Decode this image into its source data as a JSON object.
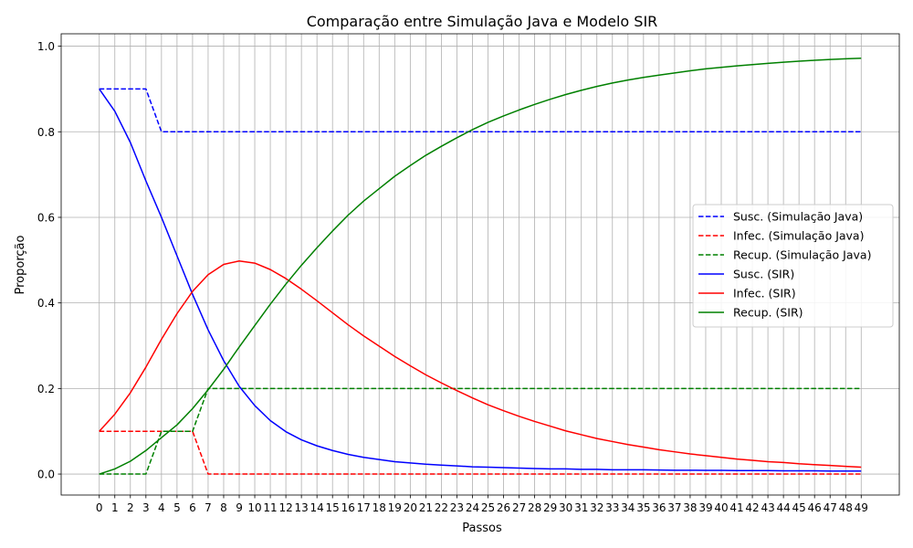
{
  "chart_data": {
    "type": "line",
    "title": "Comparação entre Simulação Java e Modelo SIR",
    "xlabel": "Passos",
    "ylabel": "Proporção",
    "xlim": [
      -2.45,
      51.45
    ],
    "ylim": [
      -0.049,
      1.029
    ],
    "x": [
      0,
      1,
      2,
      3,
      4,
      5,
      6,
      7,
      8,
      9,
      10,
      11,
      12,
      13,
      14,
      15,
      16,
      17,
      18,
      19,
      20,
      21,
      22,
      23,
      24,
      25,
      26,
      27,
      28,
      29,
      30,
      31,
      32,
      33,
      34,
      35,
      36,
      37,
      38,
      39,
      40,
      41,
      42,
      43,
      44,
      45,
      46,
      47,
      48,
      49
    ],
    "x_ticks": [
      "0",
      "1",
      "2",
      "3",
      "4",
      "5",
      "6",
      "7",
      "8",
      "9",
      "10",
      "11",
      "12",
      "13",
      "14",
      "15",
      "16",
      "17",
      "18",
      "19",
      "20",
      "21",
      "22",
      "23",
      "24",
      "25",
      "26",
      "27",
      "28",
      "29",
      "30",
      "31",
      "32",
      "33",
      "34",
      "35",
      "36",
      "37",
      "38",
      "39",
      "40",
      "41",
      "42",
      "43",
      "44",
      "45",
      "46",
      "47",
      "48",
      "49"
    ],
    "y_ticks": [
      "0.0",
      "0.2",
      "0.4",
      "0.6",
      "0.8",
      "1.0"
    ],
    "y_tick_values": [
      0,
      0.2,
      0.4,
      0.6,
      0.8,
      1.0
    ],
    "grid": true,
    "legend_position": "center-right",
    "series": [
      {
        "name": "Susc. (Simulação Java)",
        "color": "#0000ff",
        "dashed": true,
        "values": [
          0.9,
          0.9,
          0.9,
          0.9,
          0.8,
          0.8,
          0.8,
          0.8,
          0.8,
          0.8,
          0.8,
          0.8,
          0.8,
          0.8,
          0.8,
          0.8,
          0.8,
          0.8,
          0.8,
          0.8,
          0.8,
          0.8,
          0.8,
          0.8,
          0.8,
          0.8,
          0.8,
          0.8,
          0.8,
          0.8,
          0.8,
          0.8,
          0.8,
          0.8,
          0.8,
          0.8,
          0.8,
          0.8,
          0.8,
          0.8,
          0.8,
          0.8,
          0.8,
          0.8,
          0.8,
          0.8,
          0.8,
          0.8,
          0.8,
          0.8
        ]
      },
      {
        "name": "Infec. (Simulação Java)",
        "color": "#ff0000",
        "dashed": true,
        "values": [
          0.1,
          0.1,
          0.1,
          0.1,
          0.1,
          0.1,
          0.1,
          0,
          0,
          0,
          0,
          0,
          0,
          0,
          0,
          0,
          0,
          0,
          0,
          0,
          0,
          0,
          0,
          0,
          0,
          0,
          0,
          0,
          0,
          0,
          0,
          0,
          0,
          0,
          0,
          0,
          0,
          0,
          0,
          0,
          0,
          0,
          0,
          0,
          0,
          0,
          0,
          0,
          0,
          0
        ]
      },
      {
        "name": "Recup. (Simulação Java)",
        "color": "#008000",
        "dashed": true,
        "values": [
          0,
          0,
          0,
          0,
          0.1,
          0.1,
          0.1,
          0.2,
          0.2,
          0.2,
          0.2,
          0.2,
          0.2,
          0.2,
          0.2,
          0.2,
          0.2,
          0.2,
          0.2,
          0.2,
          0.2,
          0.2,
          0.2,
          0.2,
          0.2,
          0.2,
          0.2,
          0.2,
          0.2,
          0.2,
          0.2,
          0.2,
          0.2,
          0.2,
          0.2,
          0.2,
          0.2,
          0.2,
          0.2,
          0.2,
          0.2,
          0.2,
          0.2,
          0.2,
          0.2,
          0.2,
          0.2,
          0.2,
          0.2,
          0.2
        ]
      },
      {
        "name": "Susc. (SIR)",
        "color": "#0000ff",
        "dashed": false,
        "values": [
          0.9,
          0.848,
          0.775,
          0.685,
          0.6,
          0.51,
          0.42,
          0.337,
          0.265,
          0.205,
          0.16,
          0.125,
          0.099,
          0.08,
          0.066,
          0.055,
          0.046,
          0.039,
          0.034,
          0.029,
          0.026,
          0.023,
          0.021,
          0.019,
          0.017,
          0.016,
          0.015,
          0.014,
          0.013,
          0.012,
          0.012,
          0.011,
          0.011,
          0.01,
          0.01,
          0.01,
          0.0095,
          0.009,
          0.009,
          0.0085,
          0.0085,
          0.008,
          0.008,
          0.008,
          0.0075,
          0.0075,
          0.0075,
          0.007,
          0.007,
          0.007
        ]
      },
      {
        "name": "Infec. (SIR)",
        "color": "#ff0000",
        "dashed": false,
        "values": [
          0.1,
          0.14,
          0.19,
          0.25,
          0.315,
          0.375,
          0.427,
          0.466,
          0.49,
          0.498,
          0.493,
          0.478,
          0.457,
          0.432,
          0.405,
          0.377,
          0.349,
          0.323,
          0.299,
          0.275,
          0.253,
          0.232,
          0.213,
          0.195,
          0.178,
          0.162,
          0.148,
          0.135,
          0.123,
          0.112,
          0.101,
          0.092,
          0.083,
          0.076,
          0.069,
          0.063,
          0.057,
          0.052,
          0.047,
          0.043,
          0.039,
          0.035,
          0.032,
          0.029,
          0.027,
          0.024,
          0.022,
          0.02,
          0.018,
          0.016
        ]
      },
      {
        "name": "Recup. (SIR)",
        "color": "#008000",
        "dashed": false,
        "values": [
          0,
          0.012,
          0.03,
          0.055,
          0.085,
          0.115,
          0.153,
          0.197,
          0.245,
          0.297,
          0.347,
          0.397,
          0.444,
          0.488,
          0.529,
          0.568,
          0.605,
          0.638,
          0.667,
          0.696,
          0.721,
          0.745,
          0.766,
          0.786,
          0.805,
          0.822,
          0.837,
          0.851,
          0.864,
          0.876,
          0.887,
          0.897,
          0.906,
          0.914,
          0.921,
          0.927,
          0.9325,
          0.9375,
          0.9425,
          0.947,
          0.9505,
          0.954,
          0.957,
          0.96,
          0.9625,
          0.965,
          0.967,
          0.969,
          0.9705,
          0.972
        ]
      }
    ]
  }
}
